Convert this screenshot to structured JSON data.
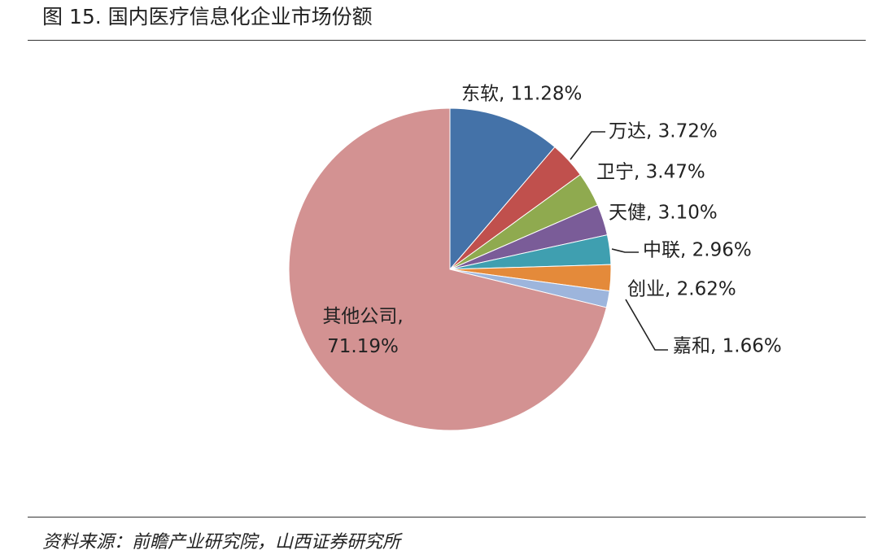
{
  "figure": {
    "title": "图 15. 国内医疗信息化企业市场份额",
    "source": "资料来源：前瞻产业研究院，山西证券研究所"
  },
  "chart_data": {
    "type": "pie",
    "title": "",
    "start_angle_deg": 90,
    "direction": "clockwise",
    "slices": [
      {
        "label": "东软, 11.28%",
        "name": "东软",
        "value": 11.28,
        "color": "#4472a8"
      },
      {
        "label": "万达, 3.72%",
        "name": "万达",
        "value": 3.72,
        "color": "#c0504d"
      },
      {
        "label": "卫宁, 3.47%",
        "name": "卫宁",
        "value": 3.47,
        "color": "#8faa4f"
      },
      {
        "label": "天健, 3.10%",
        "name": "天健",
        "value": 3.1,
        "color": "#7a5c98"
      },
      {
        "label": "中联, 2.96%",
        "name": "中联",
        "value": 2.96,
        "color": "#3f9fb0"
      },
      {
        "label": "创业, 2.62%",
        "name": "创业",
        "value": 2.62,
        "color": "#e48a3a"
      },
      {
        "label": "嘉和, 1.66%",
        "name": "嘉和",
        "value": 1.66,
        "color": "#9db5dc"
      },
      {
        "label": "其他公司, 71.19%",
        "name": "其他公司",
        "value": 71.19,
        "color": "#d39292",
        "label_lines": [
          "其他公司,",
          "71.19%"
        ]
      }
    ],
    "legend": "none"
  }
}
